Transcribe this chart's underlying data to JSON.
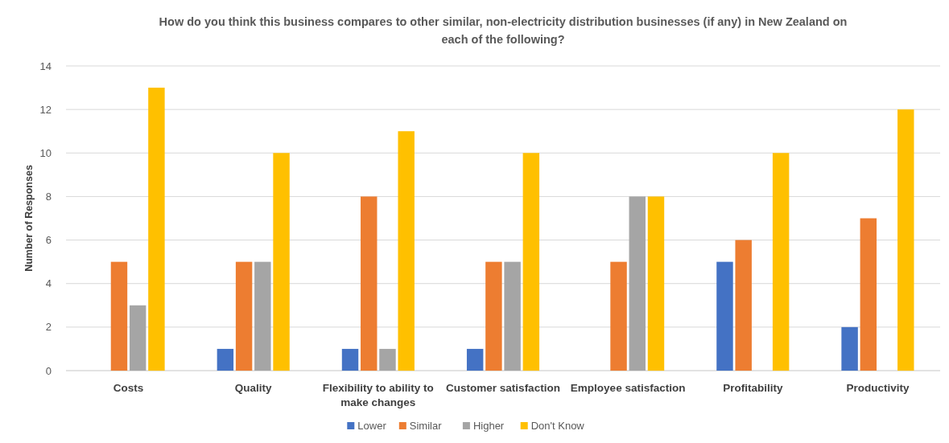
{
  "chart_data": {
    "type": "bar",
    "title": "How do you think this business compares to other similar, non-electricity distribution businesses (if any) in New Zealand on each of the following?",
    "ylabel": "Number of Responses",
    "categories": [
      "Costs",
      "Quality",
      "Flexibility to ability to make changes",
      "Customer satisfaction",
      "Employee satisfaction",
      "Profitability",
      "Productivity"
    ],
    "series": [
      {
        "name": "Lower",
        "color": "#4472c4",
        "values": [
          0,
          1,
          1,
          1,
          0,
          5,
          2
        ]
      },
      {
        "name": "Similar",
        "color": "#ed7d31",
        "values": [
          5,
          5,
          8,
          5,
          5,
          6,
          7
        ]
      },
      {
        "name": "Higher",
        "color": "#a5a5a5",
        "values": [
          3,
          5,
          1,
          5,
          8,
          0,
          0
        ]
      },
      {
        "name": "Don't Know",
        "color": "#ffc000",
        "values": [
          13,
          10,
          11,
          10,
          8,
          10,
          12
        ]
      }
    ],
    "ylim": [
      0,
      14
    ],
    "yticks": [
      0,
      2,
      4,
      6,
      8,
      10,
      12,
      14
    ],
    "grid": "y",
    "legend": "bottom"
  }
}
